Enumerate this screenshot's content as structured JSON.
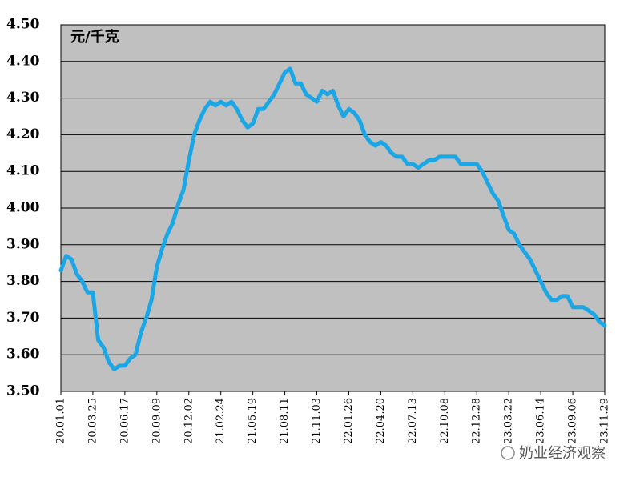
{
  "chart_data": {
    "type": "line",
    "unit_label": "元/千克",
    "watermark": "奶业经济观察",
    "categories": [
      "20.01.01",
      null,
      null,
      null,
      null,
      null,
      "20.03.25",
      null,
      null,
      null,
      null,
      null,
      "20.06.17",
      null,
      null,
      null,
      null,
      null,
      "20.09.09",
      null,
      null,
      null,
      null,
      null,
      "20.12.02",
      null,
      null,
      null,
      null,
      null,
      "21.02.24",
      null,
      null,
      null,
      null,
      null,
      "21.05.19",
      null,
      null,
      null,
      null,
      null,
      "21.08.11",
      null,
      null,
      null,
      null,
      null,
      "21.11.03",
      null,
      null,
      null,
      null,
      null,
      "22.01.26",
      null,
      null,
      null,
      null,
      null,
      "22.04.20",
      null,
      null,
      null,
      null,
      null,
      "22.07.13",
      null,
      null,
      null,
      null,
      null,
      "22.10.08",
      null,
      null,
      null,
      null,
      null,
      "22.12.28",
      null,
      null,
      null,
      null,
      null,
      "23.03.22",
      null,
      null,
      null,
      null,
      null,
      "23.06.14",
      null,
      null,
      null,
      null,
      null,
      "23.09.06",
      null,
      null,
      null,
      null,
      null,
      "23.11.29"
    ],
    "series": [
      {
        "color": "#1ba6e6",
        "values": [
          3.83,
          3.87,
          3.86,
          3.82,
          3.8,
          3.77,
          3.77,
          3.64,
          3.62,
          3.58,
          3.56,
          3.57,
          3.57,
          3.59,
          3.6,
          3.66,
          3.7,
          3.75,
          3.84,
          3.89,
          3.93,
          3.96,
          4.01,
          4.05,
          4.13,
          4.2,
          4.24,
          4.27,
          4.29,
          4.28,
          4.29,
          4.28,
          4.29,
          4.27,
          4.24,
          4.22,
          4.23,
          4.27,
          4.27,
          4.29,
          4.31,
          4.34,
          4.37,
          4.38,
          4.34,
          4.34,
          4.31,
          4.3,
          4.29,
          4.32,
          4.31,
          4.32,
          4.28,
          4.25,
          4.27,
          4.26,
          4.24,
          4.2,
          4.18,
          4.17,
          4.18,
          4.17,
          4.15,
          4.14,
          4.14,
          4.12,
          4.12,
          4.11,
          4.12,
          4.13,
          4.13,
          4.14,
          4.14,
          4.14,
          4.14,
          4.12,
          4.12,
          4.12,
          4.12,
          4.1,
          4.07,
          4.04,
          4.02,
          3.98,
          3.94,
          3.93,
          3.9,
          3.88,
          3.86,
          3.83,
          3.8,
          3.77,
          3.75,
          3.75,
          3.76,
          3.76,
          3.73,
          3.73,
          3.73,
          3.72,
          3.71,
          3.69,
          3.68
        ]
      }
    ],
    "ylim": [
      3.5,
      4.5
    ],
    "yticks": [
      {
        "value": 3.5,
        "label": "3.50"
      },
      {
        "value": 3.6,
        "label": "3.60"
      },
      {
        "value": 3.7,
        "label": "3.70"
      },
      {
        "value": 3.8,
        "label": "3.80"
      },
      {
        "value": 3.9,
        "label": "3.90"
      },
      {
        "value": 4.0,
        "label": "4.00"
      },
      {
        "value": 4.1,
        "label": "4.10"
      },
      {
        "value": 4.2,
        "label": "4.20"
      },
      {
        "value": 4.3,
        "label": "4.30"
      },
      {
        "value": 4.4,
        "label": "4.40"
      },
      {
        "value": 4.5,
        "label": "4.50"
      }
    ],
    "grid": true,
    "plot_background": "#c0c0c0"
  }
}
